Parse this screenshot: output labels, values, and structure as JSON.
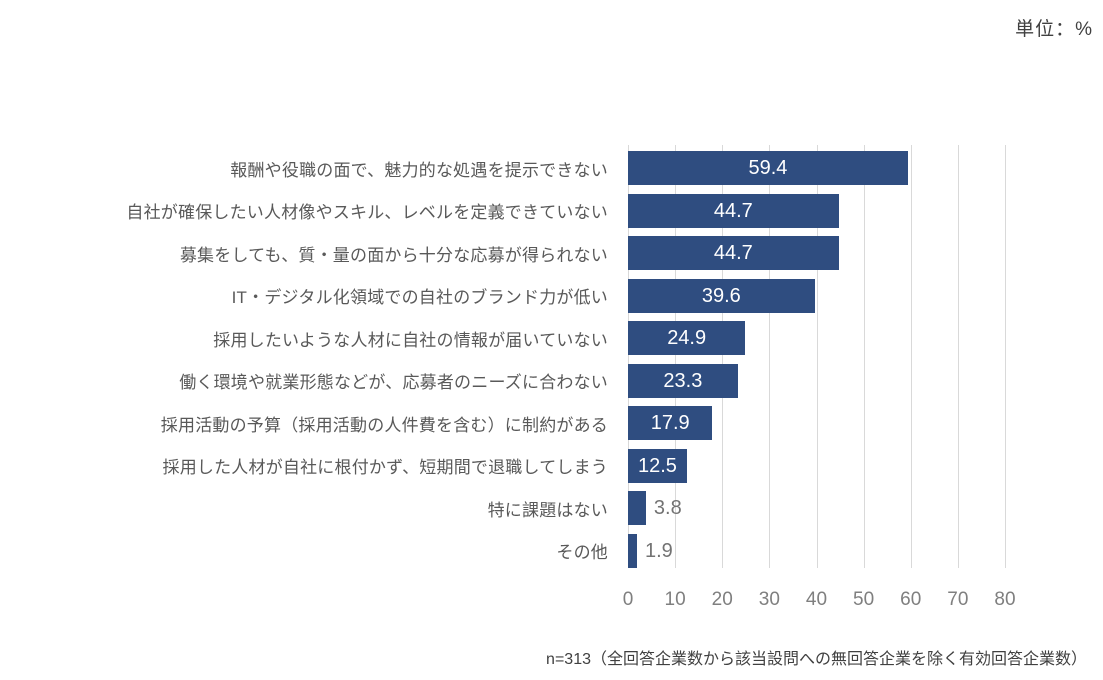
{
  "unit_label": "単位：%",
  "note": "n=313（全回答企業数から該当設問への無回答企業を除く有効回答企業数）",
  "chart_data": {
    "type": "bar",
    "orientation": "horizontal",
    "title": "",
    "xlabel": "",
    "ylabel": "",
    "categories": [
      "報酬や役職の面で、魅力的な処遇を提示できない",
      "自社が確保したい人材像やスキル、レベルを定義できていない",
      "募集をしても、質・量の面から十分な応募が得られない",
      "IT・デジタル化領域での自社のブランド力が低い",
      "採用したいような人材に自社の情報が届いていない",
      "働く環境や就業形態などが、応募者のニーズに合わない",
      "採用活動の予算（採用活動の人件費を含む）に制約がある",
      "採用した人材が自社に根付かず、短期間で退職してしまう",
      "特に課題はない",
      "その他"
    ],
    "values": [
      59.4,
      44.7,
      44.7,
      39.6,
      24.9,
      23.3,
      17.9,
      12.5,
      3.8,
      1.9
    ],
    "xlim": [
      0,
      80
    ],
    "xticks": [
      0,
      10,
      20,
      30,
      40,
      50,
      60,
      70,
      80
    ],
    "grid": true,
    "legend": false,
    "value_label_inside_threshold": 8,
    "colors": {
      "bar": "#2f4d80",
      "gridline": "#d9d9d9",
      "value_label_inside": "#ffffff",
      "value_label_outside": "#737373",
      "category_label": "#595959",
      "tick_label": "#7f7f7f",
      "unit_label": "#404040",
      "note": "#404040"
    }
  }
}
